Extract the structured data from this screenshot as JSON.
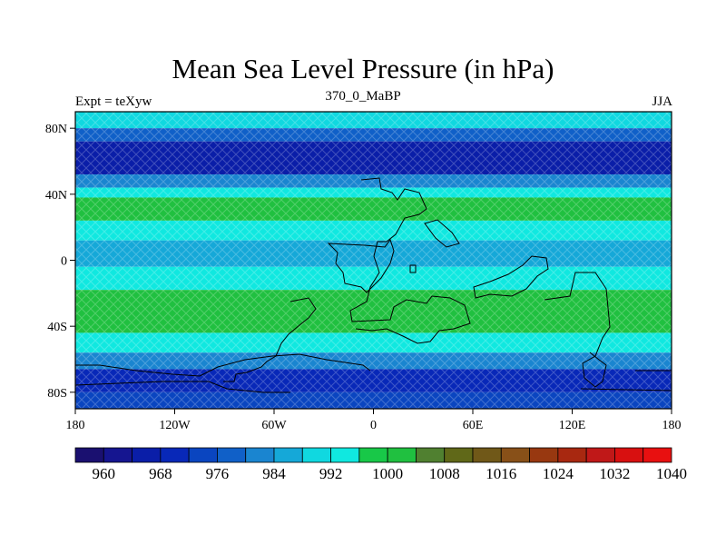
{
  "title": "Mean Sea Level Pressure (in hPa)",
  "subtitle_left": "Expt = teXyw",
  "subtitle_center": "370_0_MaBP",
  "subtitle_right": "JJA",
  "map": {
    "lon_range": [
      -180,
      180
    ],
    "lat_range": [
      -90,
      90
    ],
    "lon_ticks": [
      {
        "value": -180,
        "label": "180"
      },
      {
        "value": -120,
        "label": "120W"
      },
      {
        "value": -60,
        "label": "60W"
      },
      {
        "value": 0,
        "label": "0"
      },
      {
        "value": 60,
        "label": "60E"
      },
      {
        "value": 120,
        "label": "120E"
      },
      {
        "value": 180,
        "label": "180"
      }
    ],
    "lat_ticks": [
      {
        "value": 80,
        "label": "80N"
      },
      {
        "value": 40,
        "label": "40N"
      },
      {
        "value": 0,
        "label": "0"
      },
      {
        "value": -40,
        "label": "40S"
      },
      {
        "value": -80,
        "label": "80S"
      }
    ],
    "pressure_bands": [
      {
        "lat_from": 90,
        "lat_to": 80,
        "value": 992
      },
      {
        "lat_from": 80,
        "lat_to": 72,
        "value": 980
      },
      {
        "lat_from": 72,
        "lat_to": 52,
        "value": 968
      },
      {
        "lat_from": 52,
        "lat_to": 44,
        "value": 984
      },
      {
        "lat_from": 44,
        "lat_to": 38,
        "value": 996
      },
      {
        "lat_from": 38,
        "lat_to": 24,
        "value": 1004
      },
      {
        "lat_from": 24,
        "lat_to": 12,
        "value": 996
      },
      {
        "lat_from": 12,
        "lat_to": -4,
        "value": 990
      },
      {
        "lat_from": -4,
        "lat_to": -18,
        "value": 996
      },
      {
        "lat_from": -18,
        "lat_to": -44,
        "value": 1004
      },
      {
        "lat_from": -44,
        "lat_to": -56,
        "value": 996
      },
      {
        "lat_from": -56,
        "lat_to": -66,
        "value": 984
      },
      {
        "lat_from": -66,
        "lat_to": -80,
        "value": 972
      },
      {
        "lat_from": -80,
        "lat_to": -90,
        "value": 976
      }
    ]
  },
  "colorbar": {
    "colors": [
      "#1a1070",
      "#151590",
      "#0a1ea8",
      "#0828b8",
      "#0a45c0",
      "#1060c8",
      "#1a85d0",
      "#15a8d8",
      "#10d8e0",
      "#10e8e0",
      "#18c848",
      "#20c040",
      "#508030",
      "#606818",
      "#705818",
      "#885018",
      "#983810",
      "#a82810",
      "#c01818",
      "#d81010",
      "#e81010"
    ],
    "labels": [
      "960",
      "968",
      "976",
      "984",
      "992",
      "1000",
      "1008",
      "1016",
      "1024",
      "1032",
      "1040"
    ]
  },
  "chart_data": {
    "type": "heatmap",
    "title": "Mean Sea Level Pressure (in hPa)",
    "subtitle": "370_0_MaBP",
    "xlabel": "",
    "ylabel": "",
    "xlim": [
      -180,
      180
    ],
    "ylim": [
      -90,
      90
    ],
    "colorbar_levels": [
      960,
      1040
    ],
    "colorbar_tick_labels": [
      960,
      968,
      976,
      984,
      992,
      1000,
      1008,
      1016,
      1024,
      1032,
      1040
    ]
  }
}
